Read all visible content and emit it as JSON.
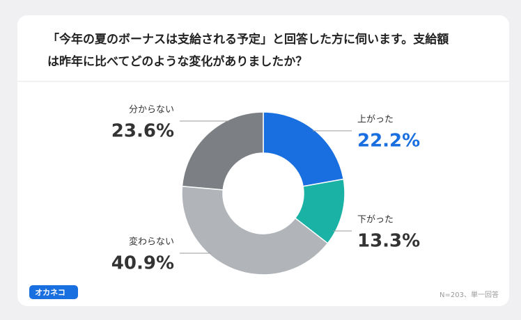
{
  "chart_data": {
    "type": "donut",
    "title": [
      "「今年の夏のボーナスは支給される予定」と回答した方に伺います。支給額",
      "は昨年に比べてどのような変化がありましたか？"
    ],
    "categories": [
      "上がった",
      "下がった",
      "変わらない",
      "分からない"
    ],
    "values": [
      22.2,
      13.3,
      40.9,
      23.6
    ],
    "value_labels": [
      "22.2%",
      "13.3%",
      "40.9%",
      "23.6%"
    ],
    "colors": [
      "#1a6fe0",
      "#19b2a5",
      "#b1b4b8",
      "#7c7f83"
    ],
    "label_colors": [
      "#1a6fe0",
      "#333333",
      "#333333",
      "#333333"
    ],
    "note": "N=203、単一回答",
    "brand": "オカネコ"
  }
}
